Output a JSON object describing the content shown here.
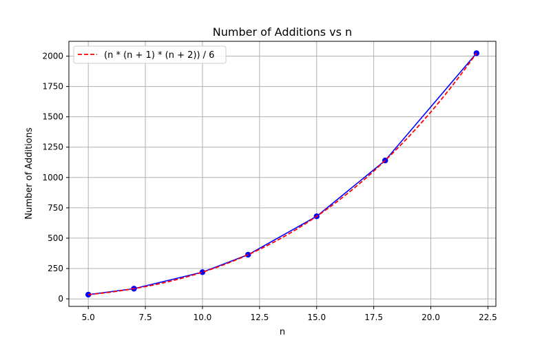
{
  "chart_data": {
    "type": "line",
    "title": "Number of Additions vs n",
    "xlabel": "n",
    "ylabel": "Number of Additions",
    "xlim": [
      4.15,
      22.85
    ],
    "ylim": [
      -62,
      2122
    ],
    "x_ticks": [
      "5.0",
      "7.5",
      "10.0",
      "12.5",
      "15.0",
      "17.5",
      "20.0",
      "22.5"
    ],
    "y_ticks": [
      "0",
      "250",
      "500",
      "750",
      "1000",
      "1250",
      "1500",
      "1750",
      "2000"
    ],
    "grid": true,
    "legend_position": "upper-left",
    "series": [
      {
        "name": "",
        "style": "solid-with-markers",
        "color": "#0000ff",
        "x": [
          5,
          7,
          10,
          12,
          15,
          18,
          22
        ],
        "y": [
          35,
          84,
          220,
          364,
          680,
          1140,
          2024
        ]
      },
      {
        "name": "(n * (n + 1) * (n + 2)) / 6",
        "style": "dashed",
        "color": "#ff0000",
        "x": [
          5,
          7,
          10,
          12,
          15,
          18,
          22
        ],
        "y": [
          35,
          84,
          220,
          364,
          680,
          1140,
          2024
        ]
      }
    ]
  }
}
